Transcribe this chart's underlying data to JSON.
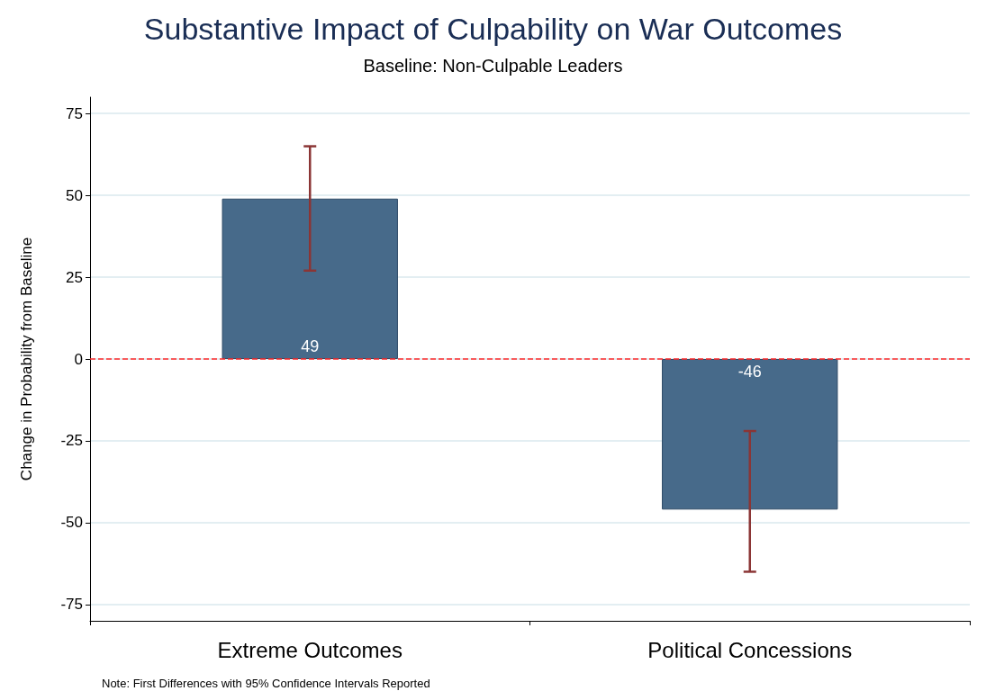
{
  "chart_data": {
    "type": "bar",
    "title": "Substantive Impact of Culpability on War Outcomes",
    "subtitle": "Baseline: Non-Culpable Leaders",
    "ylabel": "Change in Probability from Baseline",
    "categories": [
      "Extreme Outcomes",
      "Political Concessions"
    ],
    "values": [
      49,
      -46
    ],
    "color": "#476a8a",
    "errors": [
      [
        27,
        65
      ],
      [
        -65,
        -22
      ]
    ],
    "data_labels": true,
    "ylim": [
      -80,
      80
    ],
    "yticks": [
      -75,
      -50,
      -25,
      0,
      25,
      50,
      75
    ],
    "grid": "y",
    "ref_lines": [
      {
        "axis": "y",
        "value": 0,
        "color": "#ff2a2a",
        "line_style": "dashed"
      }
    ],
    "annotations": [
      "Note: First Differences with 95% Confidence Intervals Reported"
    ]
  }
}
